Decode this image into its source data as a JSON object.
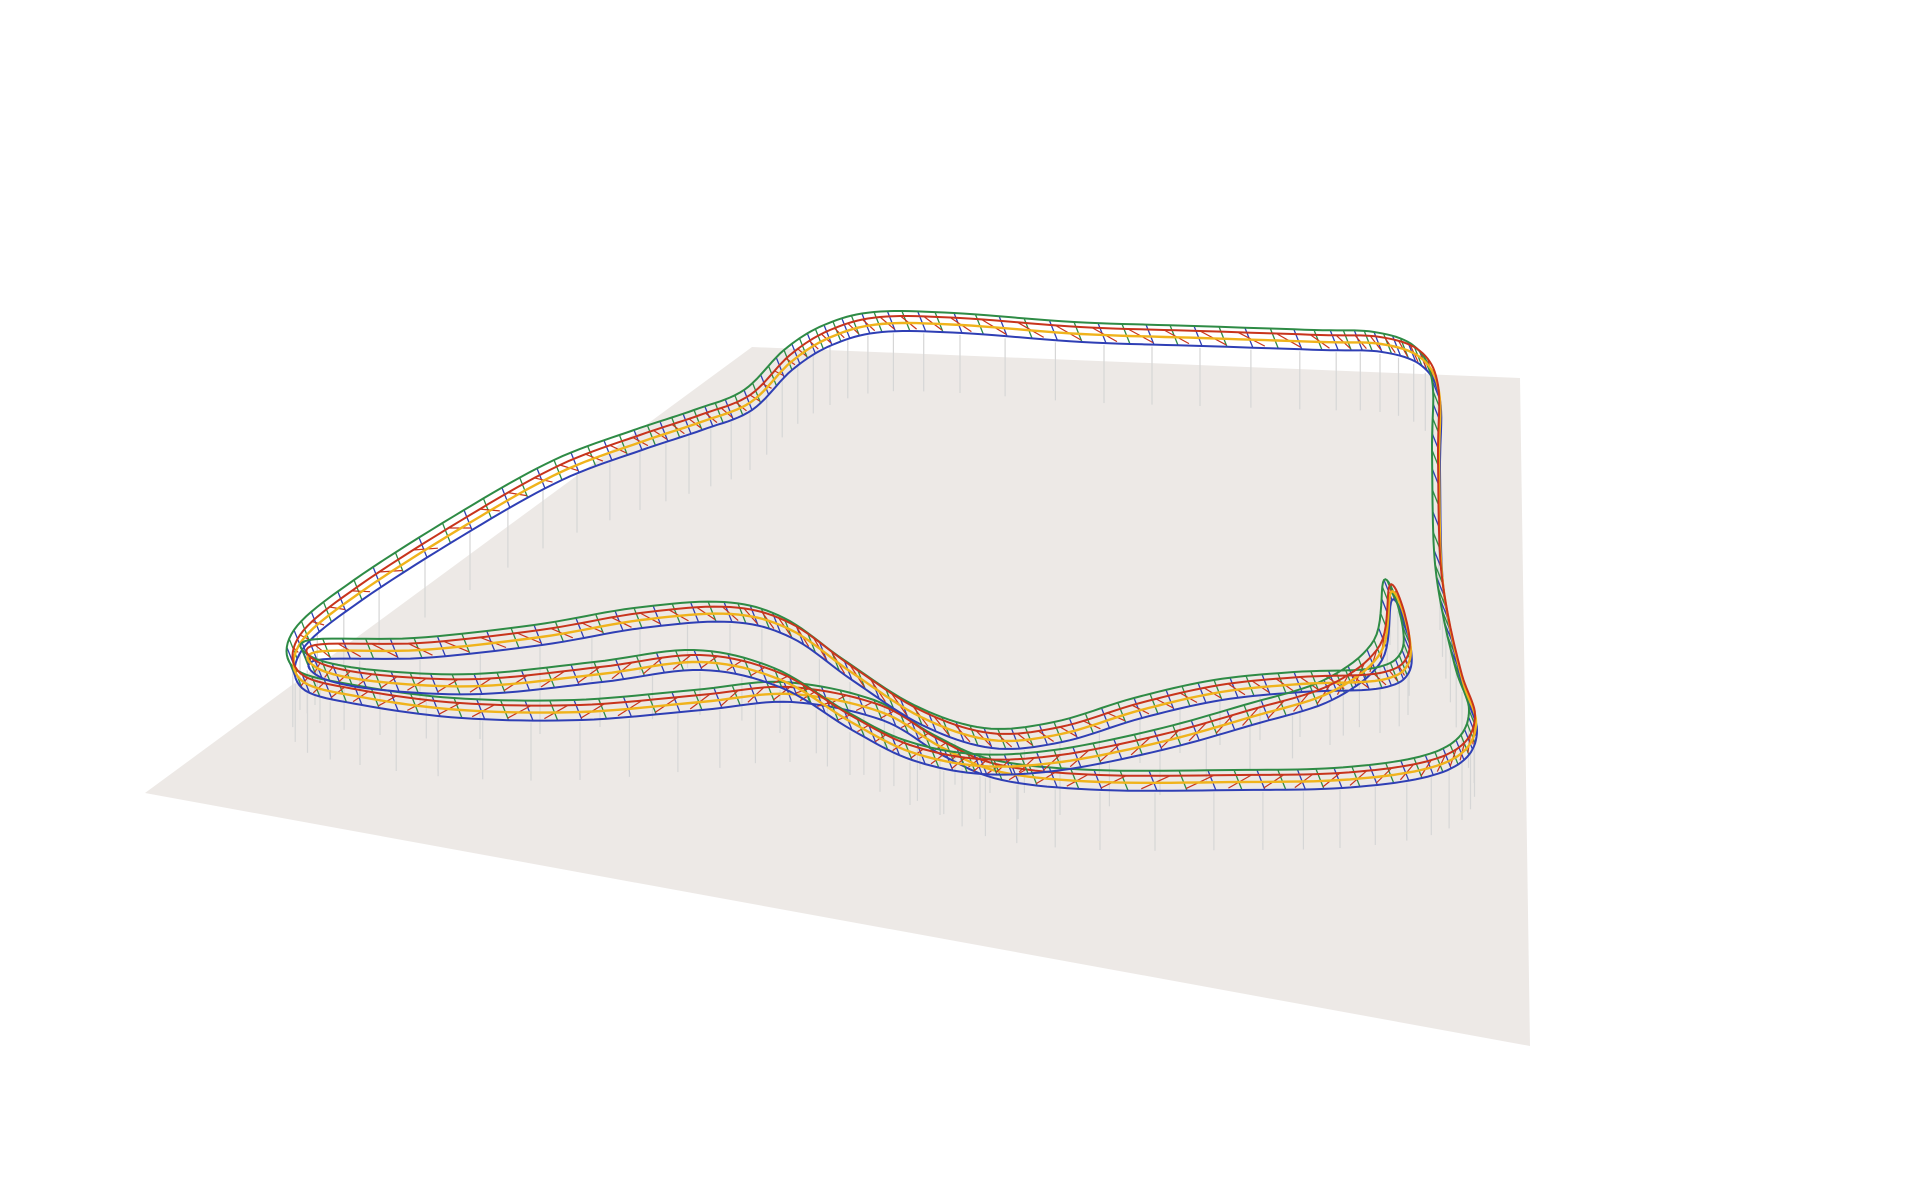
{
  "scene": {
    "colors": {
      "background": "#ffffff",
      "ground": "#ede9e6",
      "support": "#d6d6d6",
      "outer_rail": "#2e8b45",
      "inner_rail": "#2f3fb5",
      "center_rail": "#f0b31b",
      "cross_tie": "#c8341c"
    }
  }
}
